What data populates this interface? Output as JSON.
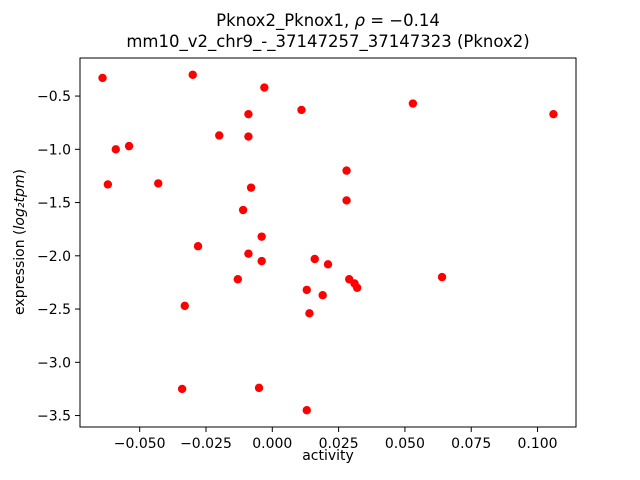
{
  "chart_data": {
    "type": "scatter",
    "title": "Pknox2_Pknox1, ρ = −0.14",
    "title_parts": {
      "prefix": "Pknox2_Pknox1, ",
      "rho_symbol": "ρ",
      "rho_value": " = −0.14"
    },
    "subtitle": "mm10_v2_chr9_-_37147257_37147323 (Pknox2)",
    "xlabel": "activity",
    "ylabel": "expression (log₂tpm)",
    "ylabel_parts": {
      "prefix": "expression (",
      "math": "log₂tpm",
      "suffix": ")"
    },
    "marker_color": "#ff0000",
    "axis_color": "#000000",
    "grid": false,
    "legend": null,
    "xlim": [
      -0.0725,
      0.1145
    ],
    "ylim": [
      -3.6075,
      -0.1425
    ],
    "x_ticks": [
      -0.05,
      -0.025,
      0.0,
      0.025,
      0.05,
      0.075,
      0.1
    ],
    "x_tick_labels": [
      "−0.050",
      "−0.025",
      "0.000",
      "0.025",
      "0.050",
      "0.075",
      "0.100"
    ],
    "y_ticks": [
      -0.5,
      -1.0,
      -1.5,
      -2.0,
      -2.5,
      -3.0,
      -3.5
    ],
    "y_tick_labels": [
      "−0.5",
      "−1.0",
      "−1.5",
      "−2.0",
      "−2.5",
      "−3.0",
      "−3.5"
    ],
    "points": [
      [
        -0.064,
        -0.33
      ],
      [
        -0.03,
        -0.3
      ],
      [
        -0.003,
        -0.42
      ],
      [
        0.011,
        -0.63
      ],
      [
        0.053,
        -0.57
      ],
      [
        0.106,
        -0.67
      ],
      [
        -0.009,
        -0.67
      ],
      [
        -0.02,
        -0.87
      ],
      [
        -0.009,
        -0.88
      ],
      [
        -0.059,
        -1.0
      ],
      [
        -0.054,
        -0.97
      ],
      [
        -0.062,
        -1.33
      ],
      [
        -0.043,
        -1.32
      ],
      [
        0.028,
        -1.2
      ],
      [
        0.028,
        -1.48
      ],
      [
        -0.008,
        -1.36
      ],
      [
        -0.011,
        -1.57
      ],
      [
        -0.004,
        -1.82
      ],
      [
        -0.028,
        -1.91
      ],
      [
        -0.009,
        -1.98
      ],
      [
        -0.004,
        -2.05
      ],
      [
        0.016,
        -2.03
      ],
      [
        0.021,
        -2.08
      ],
      [
        -0.013,
        -2.22
      ],
      [
        0.029,
        -2.22
      ],
      [
        0.031,
        -2.26
      ],
      [
        0.032,
        -2.3
      ],
      [
        0.064,
        -2.2
      ],
      [
        0.013,
        -2.32
      ],
      [
        0.019,
        -2.37
      ],
      [
        0.014,
        -2.54
      ],
      [
        -0.033,
        -2.47
      ],
      [
        -0.034,
        -3.25
      ],
      [
        -0.005,
        -3.24
      ],
      [
        0.013,
        -3.45
      ]
    ]
  }
}
